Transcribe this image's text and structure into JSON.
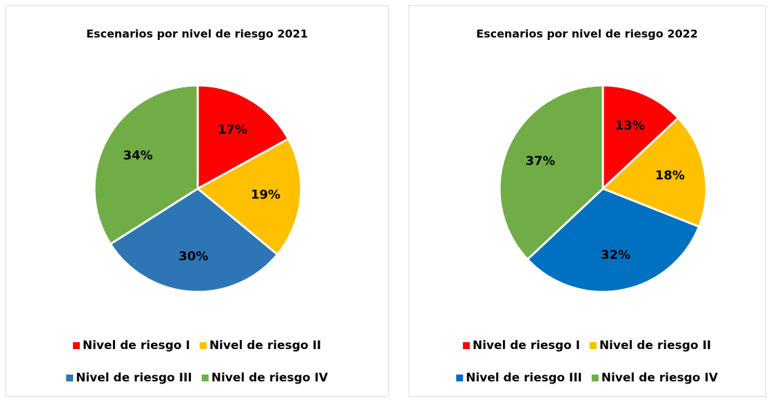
{
  "chart_data": [
    {
      "type": "pie",
      "title": "Escenarios por nivel de riesgo 2021",
      "categories": [
        "Nivel de riesgo I",
        "Nivel de riesgo II",
        "Nivel de riesgo III",
        "Nivel de riesgo IV"
      ],
      "values": [
        17,
        19,
        30,
        34
      ],
      "value_labels": [
        "17%",
        "19%",
        "30%",
        "34%"
      ],
      "colors": [
        "#ff0000",
        "#ffc000",
        "#2e75b6",
        "#70ad47"
      ],
      "legend": "bottom"
    },
    {
      "type": "pie",
      "title": "Escenarios por nivel de riesgo 2022",
      "categories": [
        "Nivel de riesgo I",
        "Nivel de riesgo II",
        "Nivel de riesgo III",
        "Nivel de riesgo IV"
      ],
      "values": [
        13,
        18,
        32,
        37
      ],
      "value_labels": [
        "13%",
        "18%",
        "32%",
        "37%"
      ],
      "colors": [
        "#ff0000",
        "#ffc000",
        "#0070c0",
        "#70ad47"
      ],
      "legend": "bottom"
    }
  ]
}
